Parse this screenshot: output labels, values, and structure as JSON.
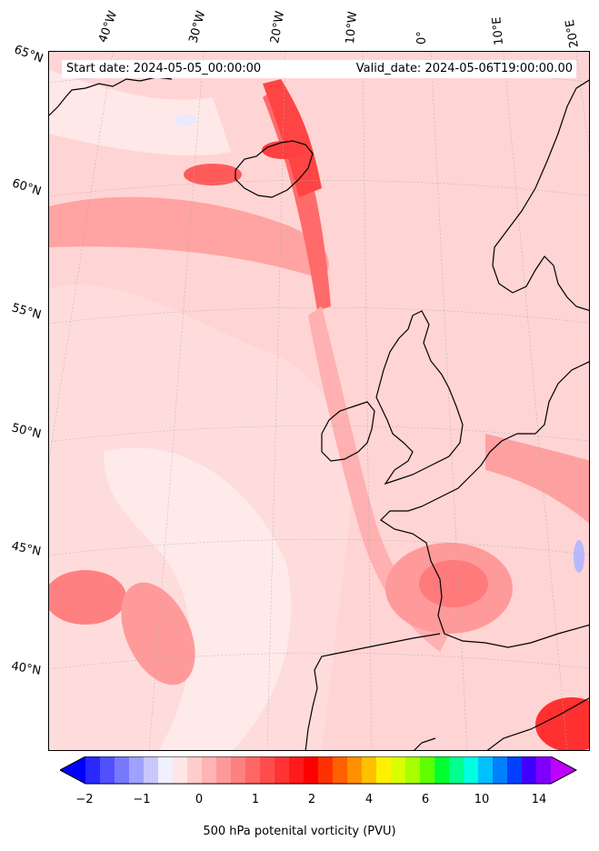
{
  "map": {
    "start_date": "Start date: 2024-05-05_00:00:00",
    "valid_date": "Valid_date: 2024-05-06T19:00:00.00",
    "lon_labels": [
      "40°W",
      "30°W",
      "20°W",
      "10°W",
      "0°",
      "10°E",
      "20°E"
    ],
    "lat_labels": [
      "65°N",
      "60°N",
      "55°N",
      "50°N",
      "45°N",
      "40°N"
    ],
    "background_color": "#ffe1e1",
    "coastline_color": "#000000"
  },
  "colorbar": {
    "label": "500 hPa potenital vorticity (PVU)",
    "ticks": [
      "−2",
      "−1",
      "0",
      "1",
      "2",
      "4",
      "6",
      "10",
      "14"
    ],
    "colors": [
      "#0000ff",
      "#2828ff",
      "#5050ff",
      "#7878ff",
      "#a0a0ff",
      "#c8c8ff",
      "#f0f0ff",
      "#ffe6e6",
      "#ffcccc",
      "#ffb3b3",
      "#ff9999",
      "#ff8080",
      "#ff6666",
      "#ff4d4d",
      "#ff3333",
      "#ff1a1a",
      "#ff0000",
      "#ff3000",
      "#ff6000",
      "#ff9000",
      "#ffc000",
      "#fff000",
      "#d8ff00",
      "#a8ff00",
      "#60ff00",
      "#00ff30",
      "#00ff90",
      "#00ffe0",
      "#00c0ff",
      "#0080ff",
      "#0040ff",
      "#4000ff",
      "#8000ff",
      "#c000ff"
    ]
  }
}
